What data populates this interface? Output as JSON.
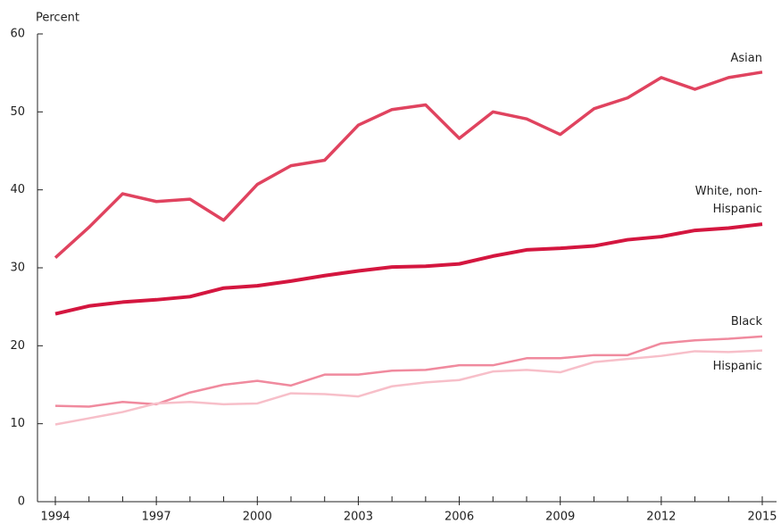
{
  "chart_data": {
    "type": "line",
    "y_label": "Percent",
    "x": [
      1994,
      1995,
      1996,
      1997,
      1998,
      1999,
      2000,
      2001,
      2002,
      2003,
      2004,
      2005,
      2006,
      2007,
      2008,
      2009,
      2010,
      2011,
      2012,
      2013,
      2014,
      2015
    ],
    "xlim": [
      1994,
      2015
    ],
    "xticks": [
      1994,
      1997,
      2000,
      2003,
      2006,
      2009,
      2012,
      2015
    ],
    "ylim": [
      0,
      60
    ],
    "yticks": [
      0,
      10,
      20,
      30,
      40,
      50,
      60
    ],
    "grid": false,
    "series": [
      {
        "name": "Asian",
        "color": "#e0435f",
        "values": [
          31.3,
          35.2,
          39.5,
          38.5,
          38.8,
          36.1,
          40.7,
          43.1,
          43.8,
          48.3,
          50.3,
          50.9,
          46.6,
          50.0,
          49.1,
          47.1,
          50.4,
          51.8,
          54.4,
          52.9,
          54.4,
          55.1
        ]
      },
      {
        "name": "White, non-Hispanic",
        "color": "#d4163f",
        "values": [
          24.1,
          25.1,
          25.6,
          25.9,
          26.3,
          27.4,
          27.7,
          28.3,
          29.0,
          29.6,
          30.1,
          30.2,
          30.5,
          31.5,
          32.3,
          32.5,
          32.8,
          33.6,
          34.0,
          34.8,
          35.1,
          35.6
        ]
      },
      {
        "name": "Black",
        "color": "#f08a9e",
        "values": [
          12.3,
          12.2,
          12.8,
          12.5,
          14.0,
          15.0,
          15.5,
          14.9,
          16.3,
          16.3,
          16.8,
          16.9,
          17.5,
          17.5,
          18.4,
          18.4,
          18.8,
          18.8,
          20.3,
          20.7,
          20.9,
          21.2
        ]
      },
      {
        "name": "Hispanic",
        "color": "#f7bfc9",
        "values": [
          9.9,
          10.7,
          11.5,
          12.6,
          12.8,
          12.5,
          12.6,
          13.9,
          13.8,
          13.5,
          14.8,
          15.3,
          15.6,
          16.7,
          16.9,
          16.6,
          17.9,
          18.3,
          18.7,
          19.3,
          19.2,
          19.4
        ]
      }
    ]
  }
}
